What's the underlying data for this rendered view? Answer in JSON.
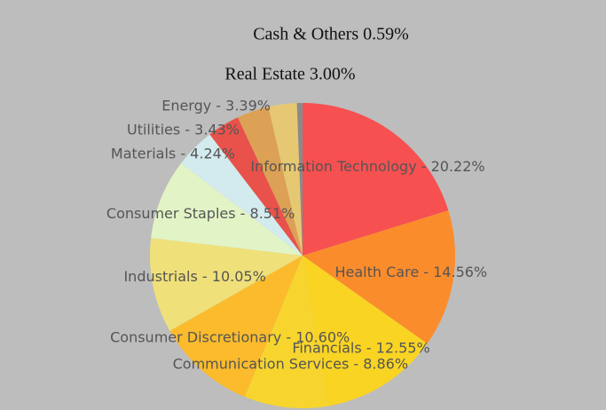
{
  "chart_data": {
    "type": "pie",
    "values": [
      20.22,
      14.56,
      12.55,
      8.86,
      10.6,
      10.05,
      8.51,
      4.24,
      3.43,
      3.39,
      3.0,
      0.59
    ],
    "value_labels": [
      "Information Technology - 20.22%",
      "Health Care - 14.56%",
      "Financials - 12.55%",
      "Communication Services - 8.86%",
      "Consumer Discretionary - 10.60%",
      "Industrials - 10.05%",
      "Consumer Staples - 8.51%",
      "Materials - 4.24%",
      "Utilities - 3.43%",
      "Energy - 3.39%",
      "Real Estate 3.00%",
      "Cash & Others 0.59%"
    ],
    "colors": [
      "#f75050",
      "#fb8c2c",
      "#f9d423",
      "#f7d52e",
      "#fbbb2c",
      "#efe07a",
      "#e2f4c6",
      "#d3ebee",
      "#fdf0dc",
      "#e8524a",
      "#dca155",
      "#e6c873",
      "#8a8a8a"
    ]
  }
}
